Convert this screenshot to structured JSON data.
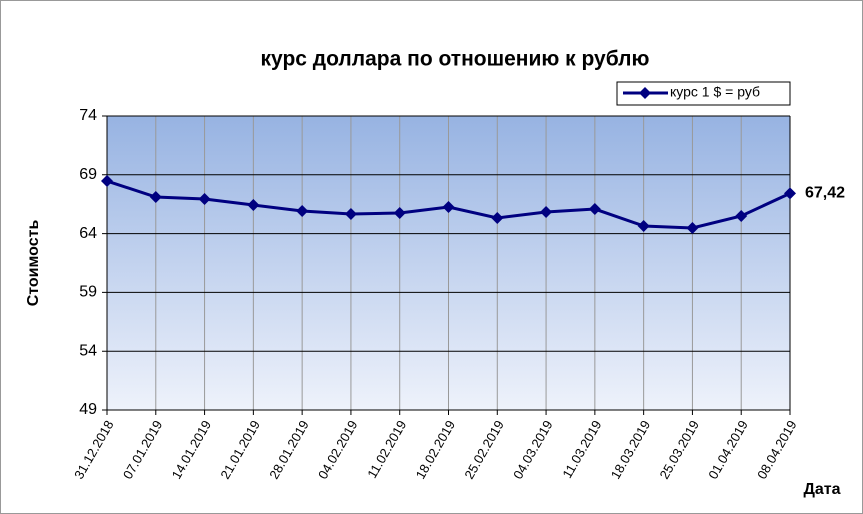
{
  "chart_data": {
    "type": "line",
    "title": "курс доллара по отношению к рублю",
    "x_label": "Дата",
    "y_label": "Стоимость",
    "categories": [
      "31.12.2018",
      "07.01.2019",
      "14.01.2019",
      "21.01.2019",
      "28.01.2019",
      "04.02.2019",
      "11.02.2019",
      "18.02.2019",
      "25.02.2019",
      "04.03.2019",
      "11.03.2019",
      "18.03.2019",
      "25.03.2019",
      "01.04.2019",
      "08.04.2019"
    ],
    "series": [
      {
        "name": "курс 1 $ = руб",
        "color": "#000080",
        "values": [
          68.47,
          67.11,
          66.94,
          66.43,
          65.92,
          65.67,
          65.75,
          66.26,
          65.33,
          65.84,
          66.09,
          64.65,
          64.48,
          65.5,
          67.42
        ],
        "value_labels": [
          null,
          null,
          null,
          null,
          null,
          null,
          null,
          null,
          null,
          null,
          null,
          null,
          null,
          null,
          "67,42"
        ]
      }
    ],
    "ylim": [
      49,
      74
    ],
    "yticks": [
      49,
      54,
      59,
      64,
      69,
      74
    ],
    "grid": true,
    "legend": "top-right"
  }
}
